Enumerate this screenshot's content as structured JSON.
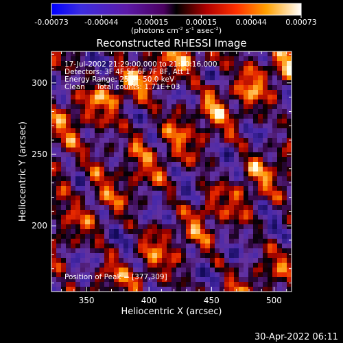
{
  "chart_data": {
    "type": "heatmap",
    "title": "Reconstructed RHESSI Image",
    "xlabel": "Heliocentric X (arcsec)",
    "ylabel": "Heliocentric Y (arcsec)",
    "xlim": [
      322,
      514
    ],
    "ylim": [
      154,
      322
    ],
    "x_ticks": [
      "350",
      "400",
      "450",
      "500"
    ],
    "y_ticks": [
      "200",
      "250",
      "300"
    ],
    "colorbar": {
      "ticks": [
        "-0.00073",
        "-0.00044",
        "-0.00015",
        "0.00015",
        "0.00044",
        "0.00073"
      ],
      "range": [
        -0.00073,
        0.00073
      ],
      "units": "(photons cm",
      "units_sup1": "-2",
      "units_mid": " s",
      "units_sup2": "-1",
      "units_end": " asec",
      "units_sup3": "-2",
      "units_close": ")",
      "colormap": "RHESSI: blue-purple to red-orange-yellow-white"
    },
    "annotations": {
      "line1": "17-Jul-2002 21:29:00.000 to 21:30:16.000",
      "line2": "Detectors: 3F 4F 5F 6F 7F 8F, Att 1",
      "line3": "Energy Range: 25.0 - 50.0 keV",
      "line4": "Clean     Total counts: 1.71E+03",
      "peak": "Position of Peak = [377,309]"
    },
    "timestamp": "30-Apr-2022 06:11",
    "peak_position": [
      377,
      309
    ],
    "grid": false
  }
}
